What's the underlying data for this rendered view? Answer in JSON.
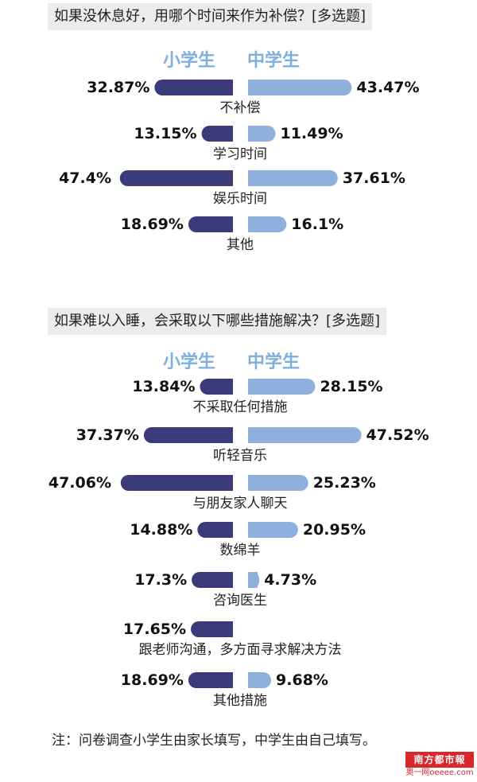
{
  "colors": {
    "primary": "#3a3b78",
    "middle": "#8fb0dc",
    "legend": "#7fb0dc"
  },
  "chart_data": [
    {
      "type": "bar",
      "title": "如果没休息好，用哪个时间来作为补偿？[多选题]",
      "legend": [
        "小学生",
        "中学生"
      ],
      "categories": [
        "不补偿",
        "学习时间",
        "娱乐时间",
        "其他"
      ],
      "series": [
        {
          "name": "小学生",
          "values": [
            32.87,
            13.15,
            47.4,
            18.69
          ],
          "labels": [
            "32.87%",
            "13.15%",
            "47.4%",
            "18.69%"
          ]
        },
        {
          "name": "中学生",
          "values": [
            43.47,
            11.49,
            37.61,
            16.1
          ],
          "labels": [
            "43.47%",
            "11.49%",
            "37.61%",
            "16.1%"
          ]
        }
      ]
    },
    {
      "type": "bar",
      "title": "如果难以入睡，会采取以下哪些措施解决？[多选题]",
      "legend": [
        "小学生",
        "中学生"
      ],
      "categories": [
        "不采取任何措施",
        "听轻音乐",
        "与朋友家人聊天",
        "数绵羊",
        "咨询医生",
        "跟老师沟通，多方面寻求解决方法",
        "其他措施"
      ],
      "series": [
        {
          "name": "小学生",
          "values": [
            13.84,
            37.37,
            47.06,
            14.88,
            17.3,
            17.65,
            18.69
          ],
          "labels": [
            "13.84%",
            "37.37%",
            "47.06%",
            "14.88%",
            "17.3%",
            "17.65%",
            "18.69%"
          ]
        },
        {
          "name": "中学生",
          "values": [
            28.15,
            47.52,
            25.23,
            20.95,
            4.73,
            null,
            9.68
          ],
          "labels": [
            "28.15%",
            "47.52%",
            "25.23%",
            "20.95%",
            "4.73%",
            "",
            "9.68%"
          ]
        }
      ]
    }
  ],
  "note": "注：问卷调查小学生由家长填写，中学生由自己填写。",
  "logo": {
    "top": "南方都市報",
    "bottom": "奥一网oeeee.com"
  }
}
